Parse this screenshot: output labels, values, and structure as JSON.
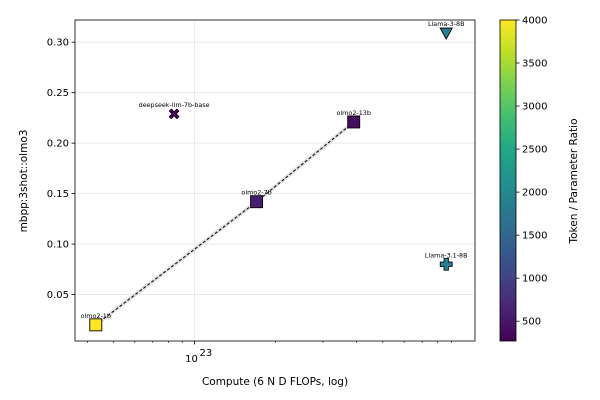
{
  "chart_data": {
    "type": "scatter",
    "xlabel": "Compute (6 N D FLOPs, log)",
    "ylabel": "mbpp:3shot::olmo3",
    "x_scale": "log",
    "xlim": [
      3.6e+22,
      1.1e+24
    ],
    "ylim": [
      0.004,
      0.322
    ],
    "x_ticks": [
      {
        "value": 1e+23,
        "label": "10",
        "exp": "23"
      }
    ],
    "y_ticks": [
      0.05,
      0.1,
      0.15,
      0.2,
      0.25,
      0.3
    ],
    "y_tick_labels": [
      "0.05",
      "0.10",
      "0.15",
      "0.20",
      "0.25",
      "0.30"
    ],
    "grid": true,
    "colorbar": {
      "label": "Token / Parameter Ratio",
      "min": 270,
      "max": 4000,
      "ticks": [
        500,
        1000,
        1500,
        2000,
        2500,
        3000,
        3500,
        4000
      ],
      "tick_labels": [
        "500",
        "1000",
        "1500",
        "2000",
        "2500",
        "3000",
        "3500",
        "4000"
      ]
    },
    "points": [
      {
        "label": "olmo2-1b",
        "x": 4.3e+22,
        "y": 0.02,
        "ratio": 4000,
        "marker": "square"
      },
      {
        "label": "olmo2-7b",
        "x": 1.7e+23,
        "y": 0.142,
        "ratio": 570,
        "marker": "square"
      },
      {
        "label": "olmo2-13b",
        "x": 3.9e+23,
        "y": 0.221,
        "ratio": 390,
        "marker": "square"
      },
      {
        "label": "deepseek-llm-7b-base",
        "x": 8.4e+22,
        "y": 0.229,
        "ratio": 290,
        "marker": "x"
      },
      {
        "label": "Llama-3-8B",
        "x": 8.6e+23,
        "y": 0.309,
        "ratio": 1900,
        "marker": "triangle-down"
      },
      {
        "label": "Llama-3.1-8B",
        "x": 8.6e+23,
        "y": 0.08,
        "ratio": 1850,
        "marker": "plus"
      }
    ],
    "line_series": [
      "olmo2-1b",
      "olmo2-7b",
      "olmo2-13b"
    ]
  }
}
